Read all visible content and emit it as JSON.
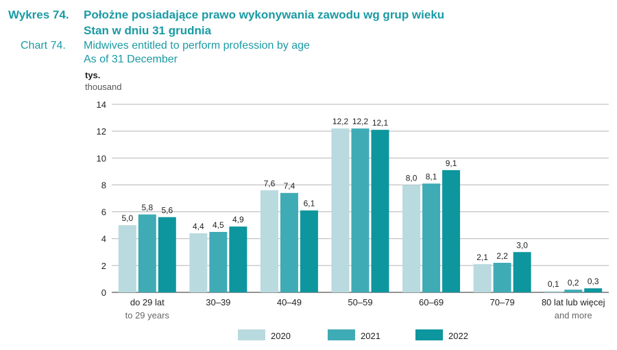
{
  "header": {
    "label_pl": "Wykres 74.",
    "label_en": "Chart 74.",
    "title_pl_line1": "Położne posiadające prawo wykonywania zawodu wg grup wieku",
    "title_pl_line2": "Stan w dniu 31 grudnia",
    "title_en_line1": "Midwives entitled to perform profession by age",
    "title_en_line2": "As of 31 December"
  },
  "unit": {
    "pl": "tys.",
    "en": "thousand"
  },
  "chart_data": {
    "type": "bar",
    "title": "Położne posiadające prawo wykonywania zawodu wg grup wieku",
    "ylabel": "tys. / thousand",
    "ylim": [
      0,
      14
    ],
    "yticks": [
      0,
      2,
      4,
      6,
      8,
      10,
      12,
      14
    ],
    "grid": true,
    "legend_position": "bottom",
    "categories": [
      "do 29 lat",
      "30–39",
      "40–49",
      "50–59",
      "60–69",
      "70–79",
      "80 lat lub więcej"
    ],
    "categories_en": [
      "to 29 years",
      "",
      "",
      "",
      "",
      "",
      "and more"
    ],
    "series": [
      {
        "name": "2020",
        "color": "#b9dade",
        "values": [
          5.0,
          4.4,
          7.6,
          12.2,
          8.0,
          2.1,
          0.1
        ],
        "labels": [
          "5,0",
          "4,4",
          "7,6",
          "12,2",
          "8,0",
          "2,1",
          "0,1"
        ]
      },
      {
        "name": "2021",
        "color": "#3fabb5",
        "values": [
          5.8,
          4.5,
          7.4,
          12.2,
          8.1,
          2.2,
          0.2
        ],
        "labels": [
          "5,8",
          "4,5",
          "7,4",
          "12,2",
          "8,1",
          "2,2",
          "0,2"
        ]
      },
      {
        "name": "2022",
        "color": "#0d969e",
        "values": [
          5.6,
          4.9,
          6.1,
          12.1,
          9.1,
          3.0,
          0.3
        ],
        "labels": [
          "5,6",
          "4,9",
          "6,1",
          "12,1",
          "9,1",
          "3,0",
          "0,3"
        ]
      }
    ]
  }
}
